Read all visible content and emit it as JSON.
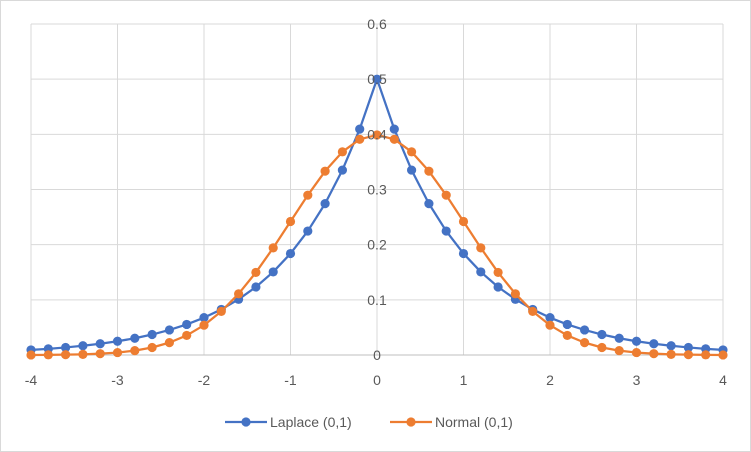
{
  "chart_data": {
    "type": "line",
    "title": "",
    "xlabel": "",
    "ylabel": "",
    "xlim": [
      -4,
      4
    ],
    "ylim": [
      0,
      0.6
    ],
    "x_ticks": [
      -4,
      -3,
      -2,
      -1,
      0,
      1,
      2,
      3,
      4
    ],
    "x_tick_labels": [
      "-4",
      "-3",
      "-2",
      "-1",
      "0",
      "1",
      "2",
      "3",
      "4"
    ],
    "y_ticks": [
      0,
      0.1,
      0.2,
      0.3,
      0.4,
      0.5,
      0.6
    ],
    "y_tick_labels": [
      "0",
      "0.1",
      "0.2",
      "0.3",
      "0.4",
      "0.5",
      "0.6"
    ],
    "grid": true,
    "legend_position": "bottom",
    "x": [
      -4.0,
      -3.8,
      -3.6,
      -3.4,
      -3.2,
      -3.0,
      -2.8,
      -2.6,
      -2.4,
      -2.2,
      -2.0,
      -1.8,
      -1.6,
      -1.4,
      -1.2,
      -1.0,
      -0.8,
      -0.6,
      -0.4,
      -0.2,
      0.0,
      0.2,
      0.4,
      0.6,
      0.8,
      1.0,
      1.2,
      1.4,
      1.6,
      1.8,
      2.0,
      2.2,
      2.4,
      2.6,
      2.8,
      3.0,
      3.2,
      3.4,
      3.6,
      3.8,
      4.0
    ],
    "series": [
      {
        "name": "Laplace (0,1)",
        "color": "#4472c4",
        "values": [
          0.0092,
          0.0112,
          0.0137,
          0.0167,
          0.0204,
          0.0249,
          0.0304,
          0.0371,
          0.0454,
          0.0554,
          0.0677,
          0.0826,
          0.1009,
          0.1233,
          0.1506,
          0.1839,
          0.2247,
          0.2744,
          0.3352,
          0.4094,
          0.5,
          0.4094,
          0.3352,
          0.2744,
          0.2247,
          0.1839,
          0.1506,
          0.1233,
          0.1009,
          0.0826,
          0.0677,
          0.0554,
          0.0454,
          0.0371,
          0.0304,
          0.0249,
          0.0204,
          0.0167,
          0.0137,
          0.0112,
          0.0092
        ]
      },
      {
        "name": "Normal (0,1)",
        "color": "#ed7d31",
        "values": [
          0.0001,
          0.0003,
          0.0006,
          0.0012,
          0.0024,
          0.0044,
          0.0079,
          0.0136,
          0.0224,
          0.0355,
          0.054,
          0.079,
          0.1109,
          0.1497,
          0.1942,
          0.242,
          0.2897,
          0.3332,
          0.3683,
          0.391,
          0.3989,
          0.391,
          0.3683,
          0.3332,
          0.2897,
          0.242,
          0.1942,
          0.1497,
          0.1109,
          0.079,
          0.054,
          0.0355,
          0.0224,
          0.0136,
          0.0079,
          0.0044,
          0.0024,
          0.0012,
          0.0006,
          0.0003,
          0.0001
        ]
      }
    ]
  }
}
